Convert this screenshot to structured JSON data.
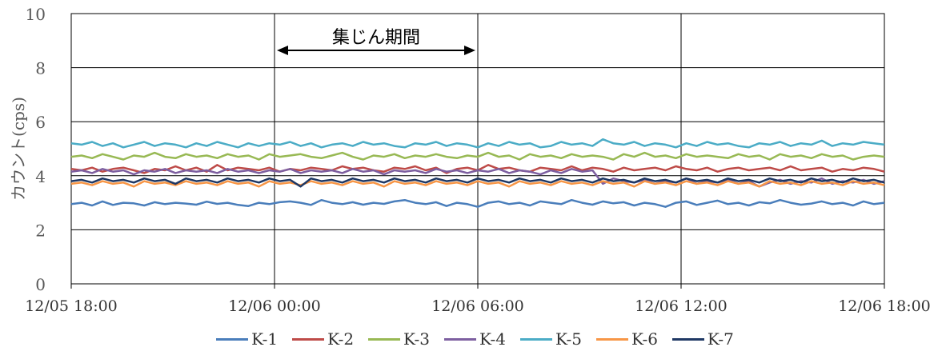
{
  "chart_data": {
    "type": "line",
    "ylabel": "カウント(cps)",
    "ylim": [
      0,
      10
    ],
    "yticks": [
      0,
      2,
      4,
      6,
      8,
      10
    ],
    "x_start": "2024-12-05T18:00",
    "x_end": "2024-12-06T18:00",
    "xtick_labels": [
      "12/05 18:00",
      "12/06 00:00",
      "12/06 06:00",
      "12/06 12:00",
      "12/06 18:00"
    ],
    "annotation": "集じん期間",
    "annotation_range": [
      "12/06 00:00",
      "12/06 06:00"
    ],
    "grid": true,
    "legend_position": "bottom",
    "series": [
      {
        "name": "K-1",
        "color": "#4a7ebb",
        "values": [
          2.95,
          3.0,
          2.9,
          3.05,
          2.92,
          3.0,
          2.98,
          2.9,
          3.02,
          2.95,
          3.0,
          2.97,
          2.93,
          3.04,
          2.96,
          3.0,
          2.92,
          2.88,
          3.0,
          2.95,
          3.02,
          3.05,
          3.0,
          2.92,
          3.1,
          3.0,
          2.95,
          3.02,
          2.93,
          3.0,
          2.96,
          3.05,
          3.1,
          3.0,
          2.95,
          3.02,
          2.88,
          3.0,
          2.95,
          2.85,
          3.0,
          3.05,
          2.95,
          3.0,
          2.9,
          3.05,
          3.0,
          2.95,
          3.1,
          3.0,
          2.93,
          3.05,
          2.98,
          3.02,
          2.9,
          3.0,
          2.95,
          2.85,
          3.0,
          3.05,
          2.92,
          3.0,
          3.08,
          2.95,
          3.0,
          2.9,
          3.02,
          2.98,
          3.1,
          3.0,
          2.93,
          2.97,
          3.05,
          2.95,
          3.0,
          2.9,
          3.05,
          2.95,
          3.0
        ]
      },
      {
        "name": "K-2",
        "color": "#be4b48",
        "values": [
          4.25,
          4.2,
          4.3,
          4.15,
          4.25,
          4.3,
          4.2,
          4.1,
          4.25,
          4.2,
          4.35,
          4.2,
          4.3,
          4.15,
          4.4,
          4.2,
          4.3,
          4.25,
          4.2,
          4.3,
          4.15,
          4.25,
          4.2,
          4.3,
          4.25,
          4.2,
          4.35,
          4.25,
          4.3,
          4.2,
          4.15,
          4.3,
          4.25,
          4.35,
          4.2,
          4.3,
          4.1,
          4.25,
          4.3,
          4.2,
          4.4,
          4.25,
          4.3,
          4.2,
          4.15,
          4.3,
          4.25,
          4.2,
          4.35,
          4.2,
          4.3,
          4.25,
          4.15,
          4.3,
          4.2,
          4.25,
          4.3,
          4.2,
          4.35,
          4.25,
          4.2,
          4.3,
          4.15,
          4.25,
          4.3,
          4.2,
          4.25,
          4.3,
          4.2,
          4.35,
          4.2,
          4.25,
          4.3,
          4.15,
          4.25,
          4.2,
          4.3,
          4.25,
          4.15
        ]
      },
      {
        "name": "K-3",
        "color": "#98b954",
        "values": [
          4.7,
          4.75,
          4.65,
          4.8,
          4.7,
          4.6,
          4.75,
          4.7,
          4.85,
          4.7,
          4.65,
          4.8,
          4.7,
          4.75,
          4.65,
          4.8,
          4.7,
          4.75,
          4.6,
          4.8,
          4.7,
          4.75,
          4.8,
          4.7,
          4.65,
          4.75,
          4.85,
          4.7,
          4.6,
          4.75,
          4.7,
          4.8,
          4.65,
          4.75,
          4.7,
          4.8,
          4.7,
          4.65,
          4.75,
          4.7,
          4.85,
          4.7,
          4.75,
          4.6,
          4.8,
          4.7,
          4.75,
          4.65,
          4.8,
          4.7,
          4.75,
          4.7,
          4.6,
          4.8,
          4.7,
          4.85,
          4.7,
          4.75,
          4.65,
          4.8,
          4.7,
          4.75,
          4.7,
          4.65,
          4.8,
          4.7,
          4.75,
          4.6,
          4.8,
          4.7,
          4.75,
          4.65,
          4.8,
          4.7,
          4.75,
          4.6,
          4.7,
          4.75,
          4.7
        ]
      },
      {
        "name": "K-4",
        "color": "#7d5fa0",
        "values": [
          4.15,
          4.2,
          4.1,
          4.25,
          4.15,
          4.2,
          4.05,
          4.2,
          4.15,
          4.25,
          4.1,
          4.2,
          4.15,
          4.2,
          4.1,
          4.25,
          4.15,
          4.2,
          4.1,
          4.2,
          4.15,
          4.25,
          4.1,
          4.2,
          4.15,
          4.2,
          4.1,
          4.25,
          4.15,
          4.2,
          4.05,
          4.2,
          4.15,
          4.2,
          4.1,
          4.25,
          4.15,
          4.2,
          4.1,
          4.2,
          4.15,
          4.25,
          4.1,
          4.2,
          4.15,
          4.05,
          4.2,
          4.1,
          4.25,
          4.15,
          4.2,
          3.7,
          3.9,
          3.8,
          3.75,
          3.85,
          3.7,
          3.8,
          3.75,
          3.9,
          3.7,
          3.8,
          3.75,
          3.85,
          3.7,
          3.8,
          3.6,
          3.75,
          3.85,
          3.7,
          3.8,
          3.75,
          3.9,
          3.7,
          3.8,
          3.75,
          3.85,
          3.7,
          3.8
        ]
      },
      {
        "name": "K-5",
        "color": "#4bacc6",
        "values": [
          5.2,
          5.15,
          5.25,
          5.1,
          5.2,
          5.05,
          5.15,
          5.25,
          5.1,
          5.2,
          5.15,
          5.05,
          5.2,
          5.1,
          5.25,
          5.15,
          5.05,
          5.2,
          5.1,
          5.2,
          5.15,
          5.25,
          5.1,
          5.2,
          5.05,
          5.15,
          5.2,
          5.1,
          5.25,
          5.15,
          5.2,
          5.1,
          5.05,
          5.2,
          5.15,
          5.25,
          5.1,
          5.2,
          5.15,
          5.05,
          5.2,
          5.1,
          5.25,
          5.15,
          5.2,
          5.05,
          5.1,
          5.25,
          5.15,
          5.2,
          5.1,
          5.35,
          5.2,
          5.15,
          5.25,
          5.1,
          5.2,
          5.15,
          5.05,
          5.2,
          5.1,
          5.25,
          5.15,
          5.2,
          5.1,
          5.05,
          5.2,
          5.15,
          5.25,
          5.1,
          5.2,
          5.15,
          5.3,
          5.1,
          5.2,
          5.15,
          5.25,
          5.2,
          5.15
        ]
      },
      {
        "name": "K-6",
        "color": "#f79646",
        "values": [
          3.7,
          3.75,
          3.65,
          3.8,
          3.7,
          3.75,
          3.6,
          3.8,
          3.7,
          3.75,
          3.65,
          3.8,
          3.7,
          3.75,
          3.65,
          3.8,
          3.7,
          3.75,
          3.6,
          3.8,
          3.7,
          3.75,
          3.65,
          3.8,
          3.7,
          3.75,
          3.65,
          3.8,
          3.7,
          3.75,
          3.6,
          3.8,
          3.7,
          3.75,
          3.65,
          3.8,
          3.7,
          3.75,
          3.65,
          3.8,
          3.7,
          3.75,
          3.6,
          3.8,
          3.7,
          3.75,
          3.65,
          3.8,
          3.7,
          3.75,
          3.65,
          3.8,
          3.7,
          3.75,
          3.6,
          3.8,
          3.7,
          3.75,
          3.65,
          3.8,
          3.7,
          3.75,
          3.65,
          3.8,
          3.7,
          3.75,
          3.6,
          3.8,
          3.7,
          3.75,
          3.65,
          3.8,
          3.7,
          3.75,
          3.65,
          3.8,
          3.7,
          3.75,
          3.65
        ]
      },
      {
        "name": "K-7",
        "color": "#1f3864",
        "values": [
          3.8,
          3.85,
          3.75,
          3.9,
          3.8,
          3.85,
          3.75,
          3.9,
          3.8,
          3.85,
          3.7,
          3.9,
          3.8,
          3.85,
          3.75,
          3.9,
          3.8,
          3.85,
          3.75,
          3.9,
          3.8,
          3.85,
          3.6,
          3.9,
          3.8,
          3.85,
          3.75,
          3.9,
          3.8,
          3.85,
          3.75,
          3.9,
          3.8,
          3.85,
          3.75,
          3.9,
          3.8,
          3.85,
          3.75,
          3.9,
          3.8,
          3.85,
          3.75,
          3.9,
          3.8,
          3.85,
          3.75,
          3.9,
          3.8,
          3.85,
          3.75,
          3.9,
          3.8,
          3.85,
          3.75,
          3.9,
          3.8,
          3.85,
          3.75,
          3.9,
          3.8,
          3.85,
          3.75,
          3.9,
          3.8,
          3.85,
          3.75,
          3.9,
          3.8,
          3.85,
          3.75,
          3.9,
          3.8,
          3.85,
          3.75,
          3.9,
          3.8,
          3.85,
          3.75
        ]
      }
    ]
  }
}
